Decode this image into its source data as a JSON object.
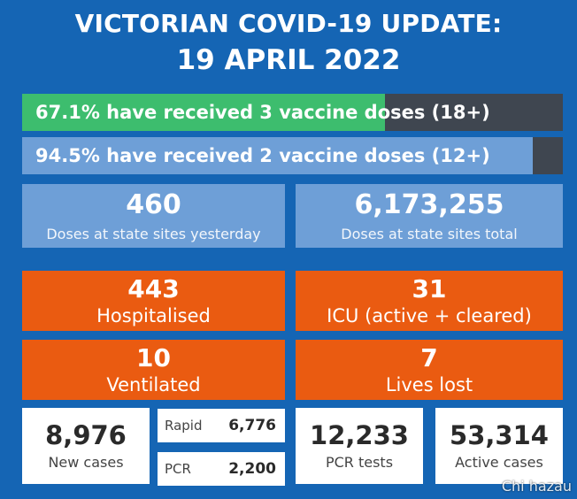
{
  "header": {
    "title": "VICTORIAN COVID-19 UPDATE:",
    "date": "19 APRIL 2022"
  },
  "vaccination": {
    "three_doses": {
      "label": "67.1% have received 3 vaccine doses (18+)",
      "percent": 67.1
    },
    "two_doses": {
      "label": "94.5% have received 2 vaccine doses (12+)",
      "percent": 94.5
    }
  },
  "doses": {
    "yesterday": {
      "value": "460",
      "label": "Doses at state sites yesterday"
    },
    "total": {
      "value": "6,173,255",
      "label": "Doses at state sites total"
    }
  },
  "hospital": {
    "hospitalised": {
      "value": "443",
      "label": "Hospitalised"
    },
    "icu": {
      "value": "31",
      "label": "ICU (active + cleared)"
    },
    "ventilated": {
      "value": "10",
      "label": "Ventilated"
    },
    "lives_lost": {
      "value": "7",
      "label": "Lives lost"
    }
  },
  "cases": {
    "new_cases": {
      "value": "8,976",
      "label": "New cases"
    },
    "rapid": {
      "label": "Rapid",
      "value": "6,776"
    },
    "pcr": {
      "label": "PCR",
      "value": "2,200"
    },
    "pcr_tests": {
      "value": "12,233",
      "label": "PCR tests"
    },
    "active_cases": {
      "value": "53,314",
      "label": "Active cases"
    }
  },
  "watermark": "Chi hazau",
  "colors": {
    "background": "#1565b4",
    "green": "#3dbd6e",
    "light_blue": "#6e9fd7",
    "orange": "#ea5b11",
    "dark_gray": "#3f4650"
  }
}
